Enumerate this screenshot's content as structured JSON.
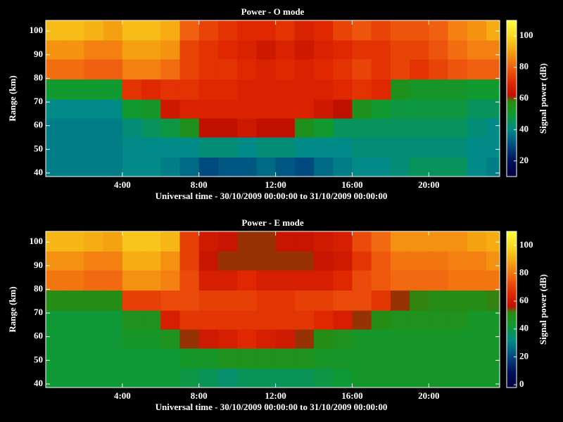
{
  "colormap": [
    {
      "pos": 0,
      "color": "#000040"
    },
    {
      "pos": 0.1,
      "color": "#00105a"
    },
    {
      "pos": 0.2,
      "color": "#004a80"
    },
    {
      "pos": 0.3,
      "color": "#008a88"
    },
    {
      "pos": 0.4,
      "color": "#109a30"
    },
    {
      "pos": 0.48,
      "color": "#2a8a10"
    },
    {
      "pos": 0.52,
      "color": "#c01000"
    },
    {
      "pos": 0.6,
      "color": "#e02800"
    },
    {
      "pos": 0.7,
      "color": "#f06010"
    },
    {
      "pos": 0.8,
      "color": "#f5a010"
    },
    {
      "pos": 0.9,
      "color": "#f8d820"
    },
    {
      "pos": 1,
      "color": "#ffff40"
    }
  ],
  "chart_data": [
    {
      "type": "heatmap",
      "title": "Power - O mode",
      "x_label": "Universal time - 30/10/2009 00:00:00 to 31/10/2009 00:00:00",
      "y_label": "Range (km)",
      "colorbar_label": "Signal power (dB)",
      "xlim": [
        0,
        23.7
      ],
      "ylim": [
        38.5,
        104.5
      ],
      "clim": [
        10,
        110
      ],
      "xticks": [
        {
          "value": 4,
          "label": "4:00"
        },
        {
          "value": 8,
          "label": "8:00"
        },
        {
          "value": 12,
          "label": "12:00"
        },
        {
          "value": 16,
          "label": "16:00"
        },
        {
          "value": 20,
          "label": "20:00"
        }
      ],
      "yticks": [
        40,
        50,
        60,
        70,
        80,
        90,
        100
      ],
      "cticks": [
        20,
        40,
        60,
        80,
        100
      ],
      "x": [
        0.5,
        1.5,
        2.5,
        3.5,
        4.5,
        5.5,
        6.5,
        7.5,
        8.5,
        9.5,
        10.5,
        11.5,
        12.5,
        13.5,
        14.5,
        15.5,
        16.5,
        17.5,
        18.5,
        19.5,
        20.5,
        21.5,
        22.5,
        23.5
      ],
      "y": [
        100,
        92,
        84,
        75,
        67,
        59,
        51,
        42
      ],
      "z": [
        [
          95,
          95,
          93,
          90,
          95,
          95,
          92,
          80,
          75,
          72,
          70,
          70,
          72,
          68,
          70,
          75,
          78,
          75,
          78,
          78,
          80,
          85,
          88,
          92
        ],
        [
          88,
          88,
          85,
          85,
          90,
          90,
          88,
          75,
          72,
          70,
          68,
          65,
          68,
          65,
          68,
          70,
          72,
          72,
          75,
          75,
          78,
          82,
          85,
          85
        ],
        [
          82,
          82,
          80,
          80,
          85,
          85,
          82,
          75,
          72,
          72,
          70,
          68,
          70,
          68,
          70,
          72,
          75,
          72,
          75,
          72,
          75,
          78,
          80,
          80
        ],
        [
          50,
          50,
          50,
          50,
          72,
          70,
          72,
          72,
          70,
          70,
          68,
          68,
          68,
          68,
          68,
          70,
          72,
          70,
          55,
          52,
          52,
          52,
          50,
          50
        ],
        [
          40,
          40,
          40,
          40,
          50,
          52,
          65,
          68,
          68,
          68,
          68,
          68,
          68,
          68,
          65,
          62,
          55,
          50,
          48,
          48,
          48,
          48,
          45,
          45
        ],
        [
          38,
          38,
          38,
          38,
          42,
          45,
          48,
          55,
          62,
          62,
          65,
          62,
          62,
          55,
          50,
          45,
          45,
          45,
          45,
          45,
          45,
          45,
          42,
          40
        ],
        [
          38,
          38,
          38,
          38,
          40,
          40,
          40,
          40,
          42,
          42,
          40,
          42,
          42,
          40,
          40,
          40,
          42,
          42,
          42,
          42,
          42,
          42,
          40,
          40
        ],
        [
          38,
          38,
          38,
          38,
          40,
          40,
          38,
          35,
          30,
          32,
          32,
          35,
          32,
          30,
          35,
          38,
          40,
          40,
          42,
          45,
          45,
          45,
          40,
          38
        ]
      ]
    },
    {
      "type": "heatmap",
      "title": "Power - E mode",
      "x_label": "Universal time - 30/10/2009 00:00:00 to 31/10/2009 00:00:00",
      "y_label": "Range (km)",
      "colorbar_label": "Signal power (dB)",
      "xlim": [
        0,
        23.7
      ],
      "ylim": [
        38.5,
        104.5
      ],
      "clim": [
        -2,
        110
      ],
      "xticks": [
        {
          "value": 4,
          "label": "4:00"
        },
        {
          "value": 8,
          "label": "8:00"
        },
        {
          "value": 12,
          "label": "12:00"
        },
        {
          "value": 16,
          "label": "16:00"
        },
        {
          "value": 20,
          "label": "20:00"
        }
      ],
      "yticks": [
        40,
        50,
        60,
        70,
        80,
        90,
        100
      ],
      "cticks": [
        0,
        20,
        40,
        60,
        80,
        100
      ],
      "x": [
        0.5,
        1.5,
        2.5,
        3.5,
        4.5,
        5.5,
        6.5,
        7.5,
        8.5,
        9.5,
        10.5,
        11.5,
        12.5,
        13.5,
        14.5,
        15.5,
        16.5,
        17.5,
        18.5,
        19.5,
        20.5,
        21.5,
        22.5,
        23.5
      ],
      "y": [
        100,
        92,
        84,
        75,
        67,
        59,
        51,
        42
      ],
      "z": [
        [
          92,
          92,
          90,
          88,
          95,
          95,
          92,
          70,
          60,
          58,
          55,
          55,
          58,
          58,
          60,
          62,
          72,
          78,
          85,
          85,
          85,
          85,
          88,
          90
        ],
        [
          85,
          85,
          82,
          82,
          90,
          90,
          85,
          70,
          58,
          55,
          55,
          55,
          55,
          55,
          58,
          60,
          68,
          75,
          80,
          80,
          80,
          82,
          82,
          85
        ],
        [
          80,
          80,
          78,
          78,
          85,
          85,
          82,
          72,
          62,
          62,
          65,
          62,
          62,
          62,
          62,
          65,
          72,
          75,
          78,
          78,
          78,
          80,
          80,
          80
        ],
        [
          50,
          50,
          50,
          50,
          70,
          70,
          72,
          72,
          70,
          70,
          70,
          68,
          68,
          70,
          70,
          72,
          72,
          68,
          55,
          52,
          50,
          50,
          50,
          52
        ],
        [
          42,
          42,
          42,
          42,
          48,
          48,
          62,
          68,
          68,
          68,
          68,
          68,
          68,
          68,
          65,
          62,
          55,
          50,
          48,
          48,
          48,
          48,
          45,
          45
        ],
        [
          42,
          42,
          42,
          42,
          45,
          45,
          48,
          55,
          60,
          62,
          65,
          62,
          60,
          55,
          50,
          48,
          45,
          45,
          45,
          45,
          45,
          45,
          45,
          45
        ],
        [
          42,
          42,
          42,
          42,
          42,
          42,
          42,
          45,
          45,
          48,
          48,
          48,
          48,
          48,
          45,
          45,
          45,
          45,
          45,
          45,
          45,
          45,
          45,
          45
        ],
        [
          42,
          42,
          42,
          42,
          42,
          42,
          42,
          40,
          38,
          35,
          38,
          38,
          38,
          38,
          40,
          42,
          45,
          45,
          45,
          45,
          45,
          45,
          45,
          45
        ]
      ]
    }
  ]
}
